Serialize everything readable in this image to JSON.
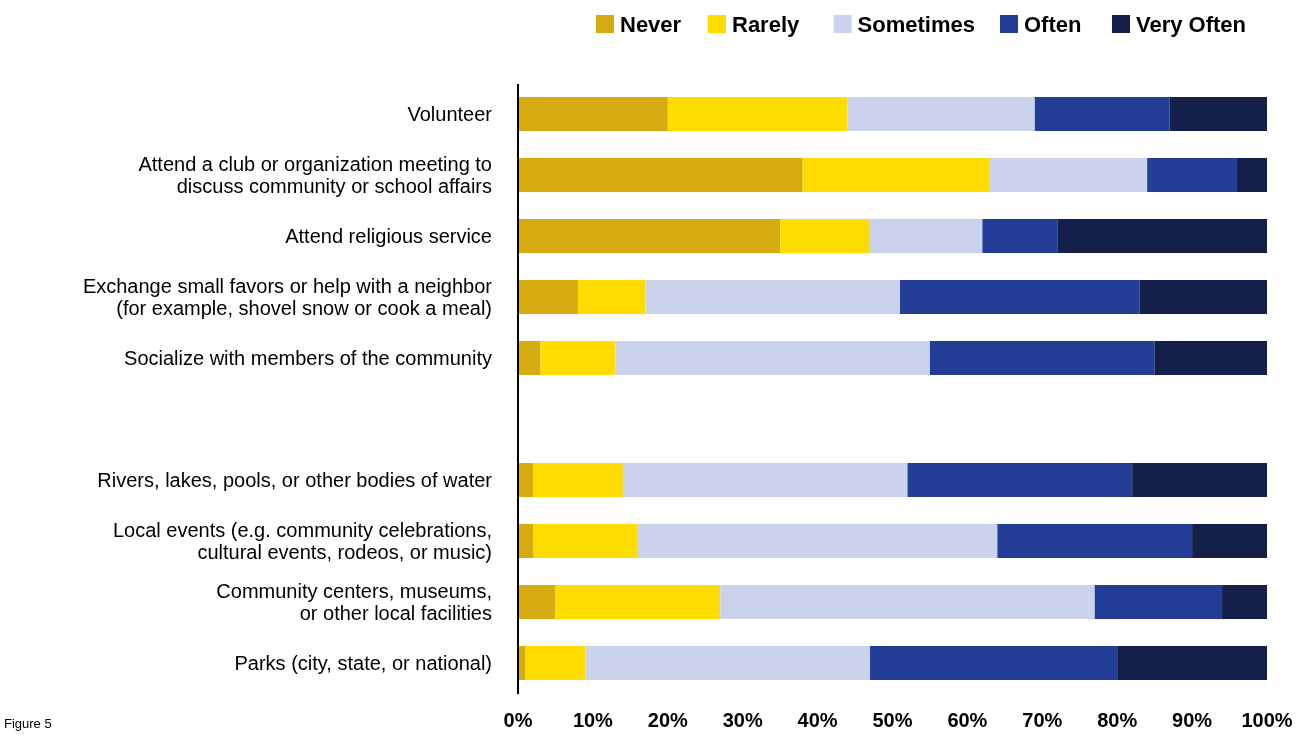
{
  "chart_data": {
    "type": "bar",
    "orientation": "horizontal",
    "stacked": true,
    "categories": [
      "Volunteer",
      "Attend a club or organization meeting to\ndiscuss community or school affairs",
      "Attend religious service",
      "Exchange small favors or help with a neighbor\n(for example, shovel snow or cook a meal)",
      "Socialize with members of the community",
      null,
      "Rivers, lakes, pools, or other bodies of water",
      "Local events (e.g. community celebrations,\ncultural events, rodeos, or music)",
      "Community centers, museums,\nor other local facilities",
      "Parks (city, state, or national)"
    ],
    "series": [
      {
        "name": "Never",
        "color": "#d6ab12",
        "values": [
          20,
          38,
          35,
          8,
          3,
          null,
          2,
          2,
          5,
          1
        ]
      },
      {
        "name": "Rarely",
        "color": "#ffdd00",
        "values": [
          24,
          25,
          12,
          9,
          10,
          null,
          12,
          14,
          22,
          8
        ]
      },
      {
        "name": "Sometimes",
        "color": "#cbd3ec",
        "values": [
          25,
          21,
          15,
          34,
          42,
          null,
          38,
          48,
          50,
          38
        ]
      },
      {
        "name": "Often",
        "color": "#233e96",
        "values": [
          18,
          12,
          10,
          32,
          30,
          null,
          30,
          26,
          17,
          33
        ]
      },
      {
        "name": "Very Often",
        "color": "#14204a",
        "values": [
          13,
          4,
          28,
          17,
          15,
          null,
          18,
          10,
          6,
          20
        ]
      }
    ],
    "xlim": [
      0,
      100
    ],
    "xticks": [
      {
        "value": 0,
        "label": "0%"
      },
      {
        "value": 10,
        "label": "10%"
      },
      {
        "value": 20,
        "label": "20%"
      },
      {
        "value": 30,
        "label": "30%"
      },
      {
        "value": 40,
        "label": "40%"
      },
      {
        "value": 50,
        "label": "50%"
      },
      {
        "value": 60,
        "label": "60%"
      },
      {
        "value": 70,
        "label": "70%"
      },
      {
        "value": 80,
        "label": "80%"
      },
      {
        "value": 90,
        "label": "90%"
      },
      {
        "value": 100,
        "label": "100%"
      }
    ],
    "legend": "top right",
    "annotations": [
      "Figure 5"
    ]
  }
}
